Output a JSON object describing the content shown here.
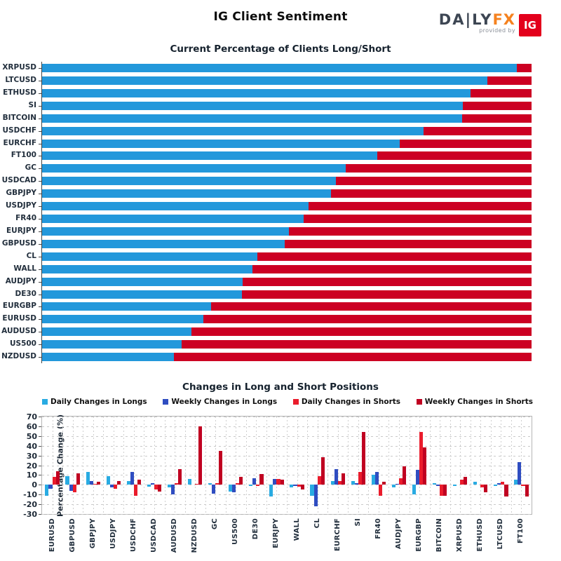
{
  "header": {
    "title": "IG Client Sentiment",
    "logo": {
      "daily": "DA|LY",
      "fx": "FX",
      "provided_by": "provided by",
      "ig": "IG"
    }
  },
  "colors": {
    "top_long_blue": "#2398db",
    "top_short_red": "#cc0023",
    "daily_longs": "#29abe2",
    "weekly_longs": "#2f4dc1",
    "daily_shorts": "#ea1c2c",
    "weekly_shorts": "#c00021",
    "grid": "#cccccc",
    "axis": "#444444"
  },
  "chart_data": [
    {
      "type": "bar",
      "subtype": "horizontal-stacked-percent",
      "title": "Current Percentage of Clients Long/Short",
      "xlim": [
        0,
        100
      ],
      "grid": false,
      "categories": [
        "XRPUSD",
        "LTCUSD",
        "ETHUSD",
        "SI",
        "BITCOIN",
        "USDCHF",
        "EURCHF",
        "FT100",
        "GC",
        "USDCAD",
        "GBPJPY",
        "USDJPY",
        "FR40",
        "EURJPY",
        "GBPUSD",
        "CL",
        "WALL",
        "AUDJPY",
        "DE30",
        "EURGBP",
        "EURUSD",
        "AUDUSD",
        "US500",
        "NZDUSD"
      ],
      "series": [
        {
          "name": "Percent Long",
          "color_key": "top_long_blue",
          "values": [
            97,
            91,
            87.5,
            86,
            85.8,
            78,
            73,
            68.5,
            62,
            60,
            59,
            54.5,
            53.5,
            50.5,
            49.5,
            44,
            43,
            41,
            40.8,
            34.5,
            33,
            30.5,
            28.5,
            27
          ]
        },
        {
          "name": "Percent Short",
          "color_key": "top_short_red",
          "values": [
            3,
            9,
            12.5,
            14,
            14.2,
            22,
            27,
            31.5,
            38,
            40,
            41,
            45.5,
            46.5,
            49.5,
            50.5,
            56,
            57,
            59,
            59.2,
            65.5,
            67,
            69.5,
            71.5,
            73
          ]
        }
      ]
    },
    {
      "type": "bar",
      "subtype": "grouped-vertical",
      "title": "Changes in Long and Short Positions",
      "ylabel": "Percentage Change (%)",
      "ylim": [
        -30,
        70
      ],
      "yticks": [
        70,
        60,
        50,
        40,
        30,
        20,
        10,
        0,
        -10,
        -20,
        -30
      ],
      "grid": true,
      "legend_position": "top",
      "categories": [
        "EURUSD",
        "GBPUSD",
        "GBPJPY",
        "USDJPY",
        "USDCHF",
        "USDCAD",
        "AUDUSD",
        "NZDUSD",
        "GC",
        "US500",
        "DE30",
        "EURJPY",
        "WALL",
        "CL",
        "EURCHF",
        "SI",
        "FR40",
        "AUDJPY",
        "EURGBP",
        "BITCOIN",
        "XRPUSD",
        "ETHUSD",
        "LTCUSD",
        "FT100"
      ],
      "series": [
        {
          "name": "Daily Changes in Longs",
          "color_key": "daily_longs",
          "values": [
            -11,
            9,
            13,
            9,
            4,
            -2,
            -3,
            6,
            2,
            -7,
            -1,
            -12,
            -3,
            -11,
            4,
            4,
            10,
            -3,
            -10,
            2,
            -1,
            3,
            -1,
            5
          ]
        },
        {
          "name": "Weekly Changes in Longs",
          "color_key": "weekly_longs",
          "values": [
            -4,
            -6,
            4,
            -3,
            13,
            2,
            -10,
            0,
            -9,
            -8,
            7,
            6,
            -1,
            -22,
            16,
            2,
            13,
            1,
            15,
            -1,
            0,
            0,
            2,
            23
          ]
        },
        {
          "name": "Daily Changes in Shorts",
          "color_key": "daily_shorts",
          "values": [
            8,
            -8,
            1,
            -4,
            -11,
            -5,
            2,
            1,
            2,
            2,
            -1,
            6,
            -2,
            9,
            4,
            13,
            -11,
            7,
            54,
            -11,
            5,
            -3,
            3,
            -1
          ]
        },
        {
          "name": "Weekly Changes in Shorts",
          "color_key": "weekly_shorts",
          "values": [
            14,
            12,
            3,
            4,
            5,
            -7,
            16,
            60,
            35,
            8,
            11,
            5,
            -5,
            28,
            12,
            54,
            3,
            19,
            38,
            -11,
            8,
            -8,
            -12,
            -12
          ]
        }
      ]
    }
  ]
}
